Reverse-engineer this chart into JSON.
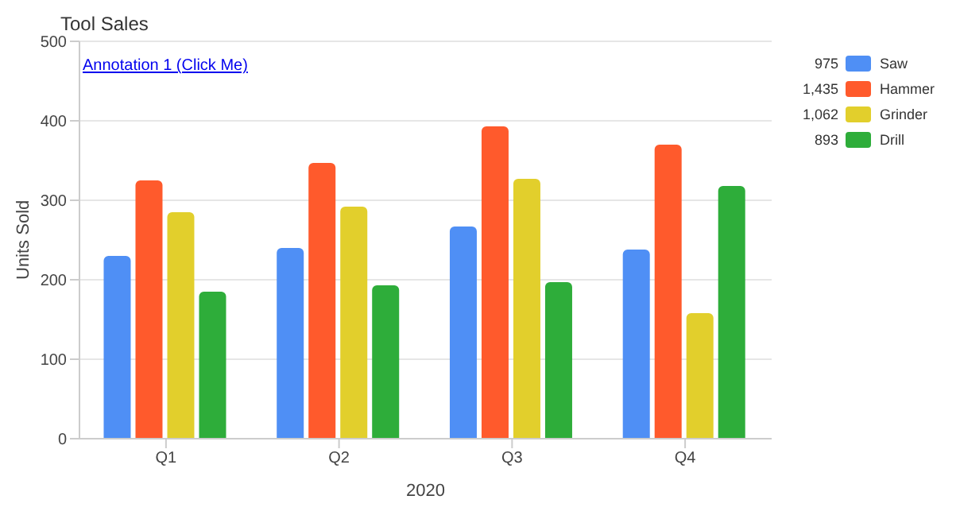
{
  "chart_data": {
    "type": "bar",
    "title": "Tool Sales",
    "xlabel": "2020",
    "ylabel": "Units Sold",
    "annotations": [
      "Annotation 1 (Click Me)",
      "975",
      "1,435",
      "1,062",
      "893"
    ],
    "categories": [
      "Q1",
      "Q2",
      "Q3",
      "Q4"
    ],
    "series": [
      {
        "name": "Saw",
        "color": "#4f8ff5",
        "values": [
          230,
          240,
          267,
          238
        ]
      },
      {
        "name": "Hammer",
        "color": "#ff5a2c",
        "values": [
          325,
          347,
          393,
          370
        ]
      },
      {
        "name": "Grinder",
        "color": "#e2cf2c",
        "values": [
          285,
          292,
          327,
          158
        ]
      },
      {
        "name": "Drill",
        "color": "#2ead3a",
        "values": [
          185,
          193,
          197,
          318
        ]
      }
    ],
    "ylim": [
      0,
      500
    ],
    "yticks": [
      0,
      100,
      200,
      300,
      400,
      500
    ],
    "grid": "y",
    "legend": "top right"
  }
}
